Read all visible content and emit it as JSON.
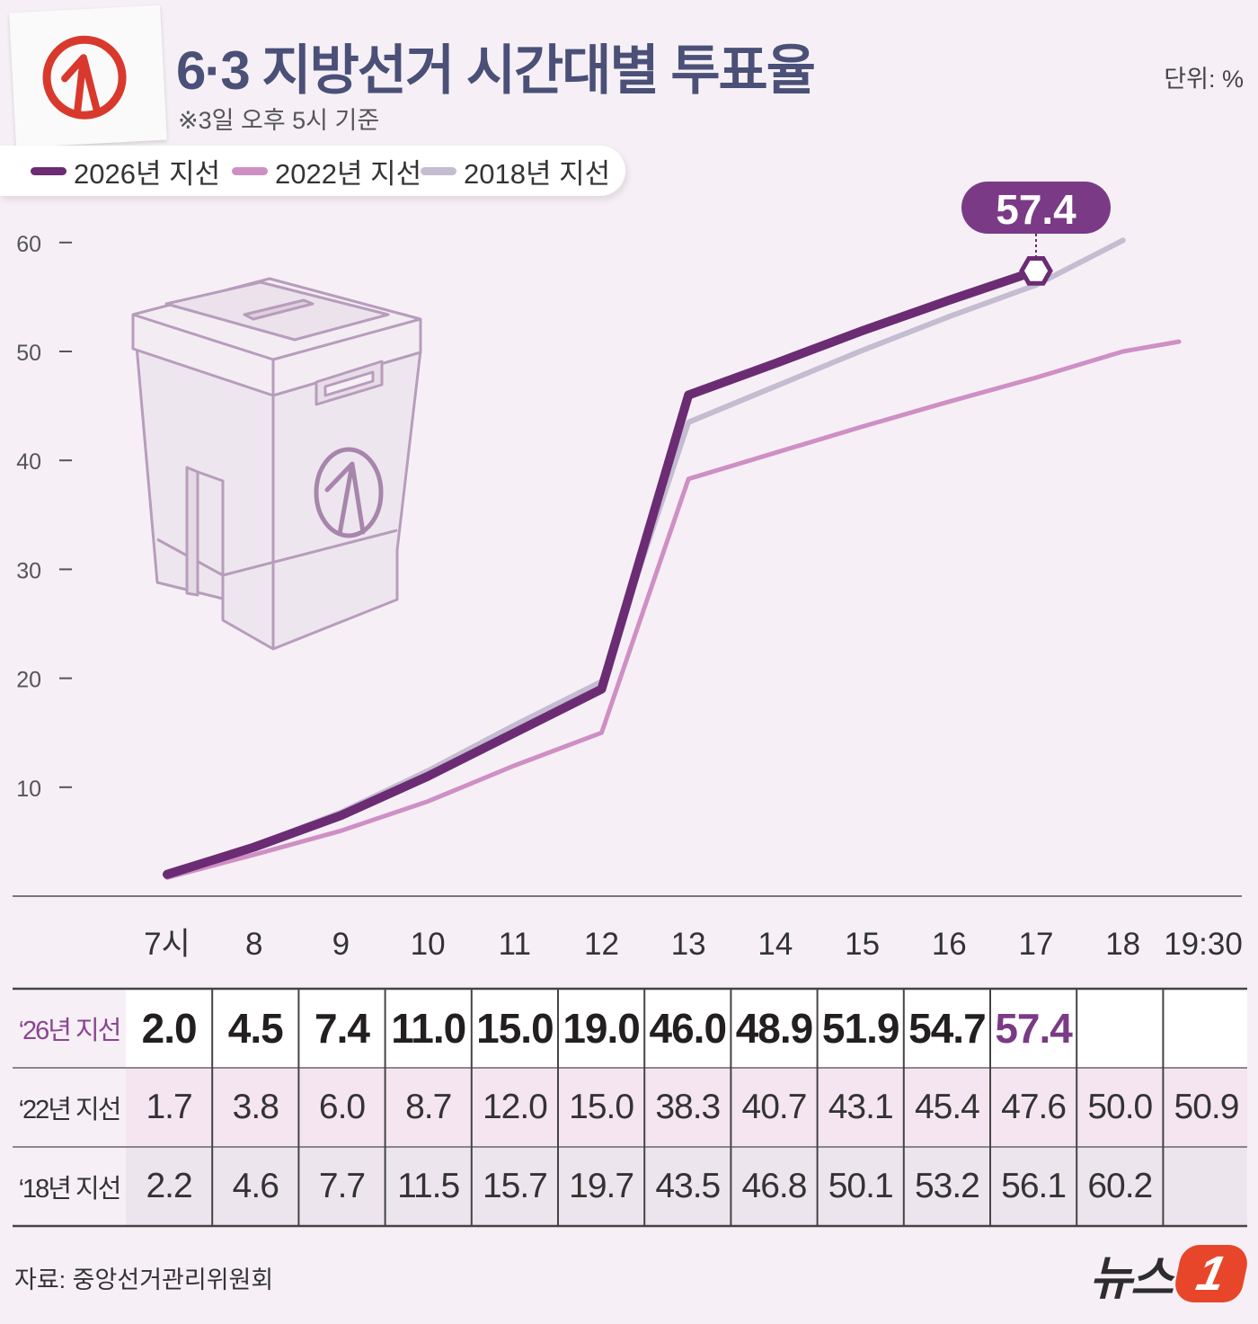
{
  "header": {
    "title": "6·3 지방선거 시간대별 투표율",
    "subtitle": "※3일 오후 5시 기준",
    "unit": "단위: %"
  },
  "colors": {
    "s2026": "#6b2c74",
    "s2022": "#cf8fc4",
    "s2018": "#c4bcd0",
    "accent": "#7b3a86",
    "title": "#4a5077"
  },
  "legend": [
    {
      "label": "2026년 지선",
      "color": "#6b2c74"
    },
    {
      "label": "2022년 지선",
      "color": "#cf8fc4"
    },
    {
      "label": "2018년 지선",
      "color": "#c4bcd0"
    }
  ],
  "chart_data": {
    "type": "line",
    "x": [
      "7시",
      "8",
      "9",
      "10",
      "11",
      "12",
      "13",
      "14",
      "15",
      "16",
      "17",
      "18",
      "19:30"
    ],
    "ylim": [
      0,
      60
    ],
    "yticks": [
      10,
      20,
      30,
      40,
      50,
      60
    ],
    "series": [
      {
        "name": "2026년 지선",
        "values": [
          2.0,
          4.5,
          7.4,
          11.0,
          15.0,
          19.0,
          46.0,
          48.9,
          51.9,
          54.7,
          57.4,
          null,
          null
        ]
      },
      {
        "name": "2022년 지선",
        "values": [
          1.7,
          3.8,
          6.0,
          8.7,
          12.0,
          15.0,
          38.3,
          40.7,
          43.1,
          45.4,
          47.6,
          50.0,
          50.9
        ]
      },
      {
        "name": "2018년 지선",
        "values": [
          2.2,
          4.6,
          7.7,
          11.5,
          15.7,
          19.7,
          43.5,
          46.8,
          50.1,
          53.2,
          56.1,
          60.2,
          null
        ]
      }
    ],
    "annotation": {
      "value": "57.4",
      "x_index": 10
    }
  },
  "table": {
    "rows": [
      {
        "label": "‘26년 지선",
        "cells": [
          "2.0",
          "4.5",
          "7.4",
          "11.0",
          "15.0",
          "19.0",
          "46.0",
          "48.9",
          "51.9",
          "54.7",
          "57.4",
          "",
          ""
        ]
      },
      {
        "label": "‘22년 지선",
        "cells": [
          "1.7",
          "3.8",
          "6.0",
          "8.7",
          "12.0",
          "15.0",
          "38.3",
          "40.7",
          "43.1",
          "45.4",
          "47.6",
          "50.0",
          "50.9"
        ]
      },
      {
        "label": "‘18년 지선",
        "cells": [
          "2.2",
          "4.6",
          "7.7",
          "11.5",
          "15.7",
          "19.7",
          "43.5",
          "46.8",
          "50.1",
          "53.2",
          "56.1",
          "60.2",
          ""
        ]
      }
    ]
  },
  "footer": {
    "source": "자료: 중앙선거관리위원회",
    "brand": "뉴스",
    "brand_badge": "1"
  }
}
